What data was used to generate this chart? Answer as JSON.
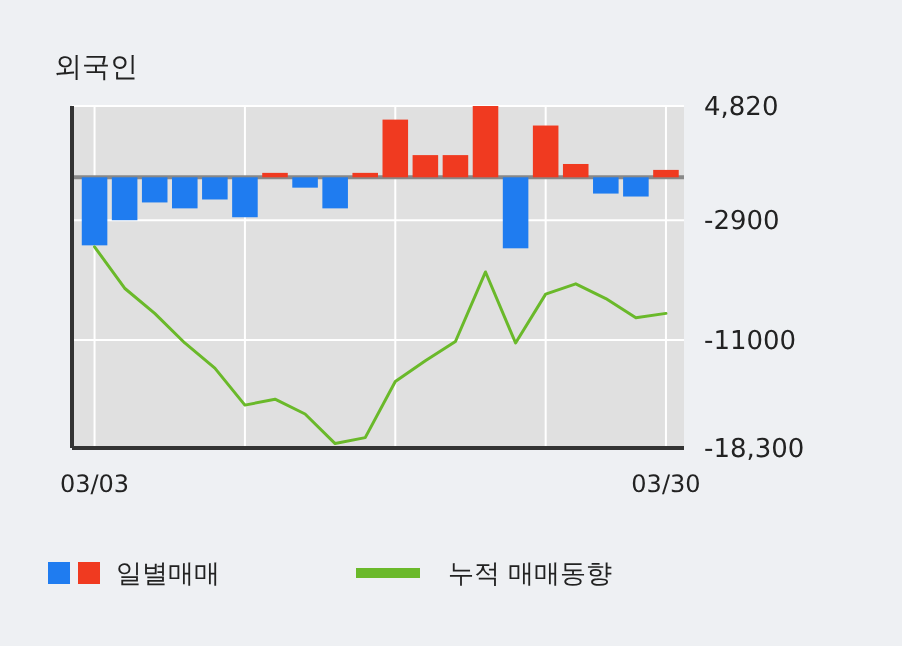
{
  "chart_data": {
    "type": "bar",
    "title": "외국인",
    "categories": [
      "03/03",
      null,
      null,
      null,
      null,
      null,
      null,
      null,
      null,
      null,
      null,
      null,
      null,
      null,
      null,
      null,
      null,
      null,
      null,
      "03/30"
    ],
    "series": [
      {
        "name": "일별매매",
        "colors": [
          "#1f7cf0",
          "#1f7cf0",
          "#1f7cf0",
          "#1f7cf0",
          "#1f7cf0",
          "#1f7cf0",
          "#f03a20",
          "#1f7cf0",
          "#1f7cf0",
          "#f03a20",
          "#f03a20",
          "#f03a20",
          "#f03a20",
          "#f03a20",
          "#1f7cf0",
          "#f03a20",
          "#f03a20",
          "#1f7cf0",
          "#1f7cf0",
          "#f03a20"
        ],
        "values": [
          -4600,
          -2900,
          -1700,
          -2100,
          -1500,
          -2700,
          300,
          -700,
          -2100,
          300,
          3900,
          1500,
          1500,
          4820,
          -4800,
          3500,
          900,
          -1100,
          -1300,
          500
        ]
      },
      {
        "name": "누적 매매동향",
        "type": "line",
        "color": "#6ab92a",
        "values": [
          -4700,
          -7500,
          -9200,
          -11200,
          -12900,
          -15400,
          -15000,
          -16000,
          -18000,
          -17600,
          -13800,
          -12400,
          -11100,
          -6400,
          -11200,
          -7900,
          -7200,
          -8200,
          -9500,
          -9200
        ]
      }
    ],
    "ylim": [
      -18300,
      4820
    ],
    "yticks": [
      {
        "value": 4820,
        "label": "4,820"
      },
      -2900,
      -11000,
      {
        "value": -18300,
        "label": "-18,300"
      }
    ],
    "grid": true,
    "legend": "bottom"
  }
}
